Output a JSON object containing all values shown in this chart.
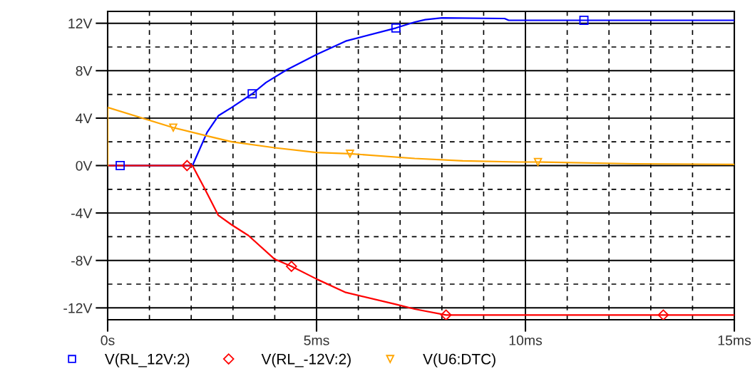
{
  "chart_data": {
    "type": "line",
    "legend": "bottom",
    "grid": true,
    "xlim": [
      0,
      15
    ],
    "ylim": [
      -13,
      13
    ],
    "xticks": [
      {
        "value": 0,
        "label": "0s"
      },
      {
        "value": 5,
        "label": "5ms"
      },
      {
        "value": 10,
        "label": "10ms"
      },
      {
        "value": 15,
        "label": "15ms"
      }
    ],
    "yticks": [
      {
        "value": -12,
        "label": "-12V"
      },
      {
        "value": -8,
        "label": "-8V"
      },
      {
        "value": -4,
        "label": "-4V"
      },
      {
        "value": 0,
        "label": "0V"
      },
      {
        "value": 4,
        "label": "4V"
      },
      {
        "value": 8,
        "label": "8V"
      },
      {
        "value": 12,
        "label": "12V"
      }
    ],
    "series": [
      {
        "color": "#0000ff",
        "x": [
          0,
          2.03,
          2.38,
          2.65,
          2.97,
          3.46,
          3.79,
          4.28,
          5.02,
          5.7,
          6.9,
          7.35,
          7.6,
          8.0,
          9.5,
          9.6,
          15
        ],
        "values": [
          0,
          0,
          2.8,
          4.2,
          4.9,
          6.05,
          7.0,
          8.06,
          9.4,
          10.5,
          11.6,
          12.1,
          12.3,
          12.45,
          12.4,
          12.25,
          12.25
        ]
      },
      {
        "color": "#ff0000",
        "x": [
          0,
          2.03,
          2.33,
          2.65,
          2.97,
          3.37,
          4.0,
          4.4,
          5.02,
          5.7,
          6.9,
          7.35,
          8.1,
          15
        ],
        "values": [
          0,
          0,
          -2.0,
          -4.2,
          -5.0,
          -5.9,
          -7.9,
          -8.5,
          -9.6,
          -10.7,
          -11.7,
          -12.1,
          -12.6,
          -12.6
        ]
      },
      {
        "color": "#ffa500",
        "x": [
          0,
          0,
          1.57,
          2.38,
          2.97,
          4.0,
          5.0,
          5.8,
          7.35,
          8.5,
          9.84,
          10.3,
          12.6,
          15
        ],
        "values": [
          0,
          4.9,
          3.2,
          2.5,
          2.0,
          1.5,
          1.1,
          1.0,
          0.6,
          0.4,
          0.3,
          0.3,
          0.15,
          0.1
        ]
      },
      {
        "type": "scatter",
        "name": "V(RL_12V:2)",
        "color": "#0000ff",
        "marker": "square",
        "x": [
          0.3,
          3.46,
          6.9,
          11.4
        ],
        "values": [
          0,
          6.05,
          11.6,
          12.25
        ]
      },
      {
        "type": "scatter",
        "name": "V(RL_-12V:2)",
        "color": "#ff0000",
        "marker": "diamond",
        "x": [
          1.9,
          4.4,
          8.1,
          13.3
        ],
        "values": [
          0,
          -8.5,
          -12.6,
          -12.6
        ]
      },
      {
        "type": "scatter",
        "name": "V(U6:DTC)",
        "color": "#ffa500",
        "marker": "triangle",
        "x": [
          1.57,
          5.8,
          10.3
        ],
        "values": [
          3.2,
          1.0,
          0.3
        ]
      }
    ]
  }
}
